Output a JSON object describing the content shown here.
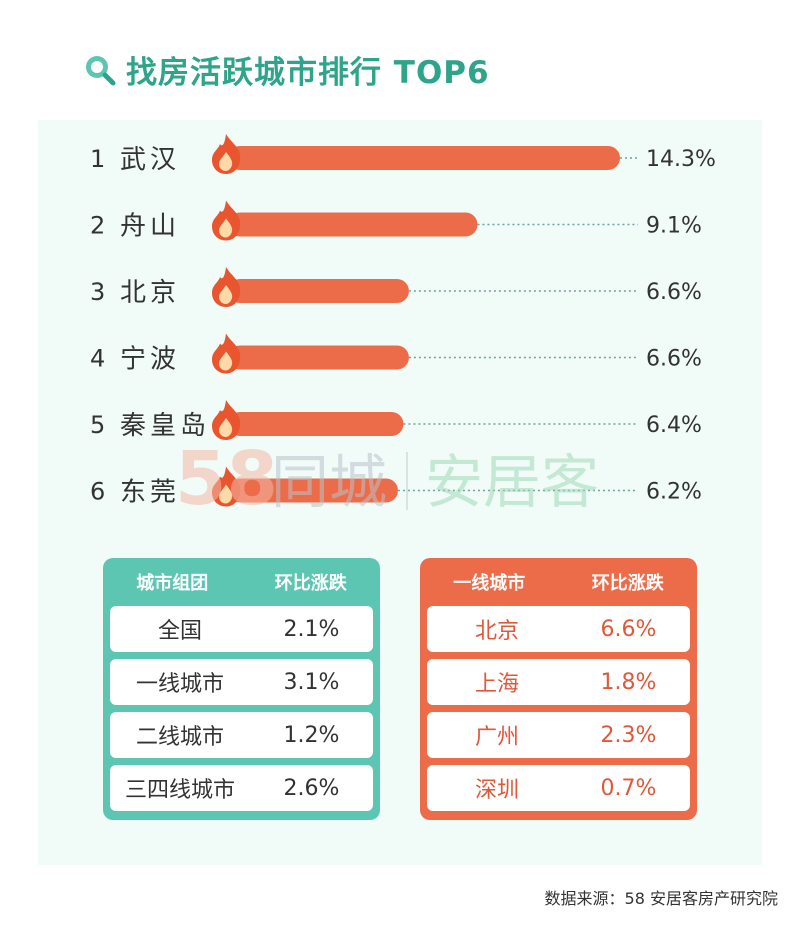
{
  "title": "找房活跃城市排行 TOP6",
  "chart_data": {
    "type": "bar",
    "orientation": "horizontal",
    "ranks": [
      "1",
      "2",
      "3",
      "4",
      "5",
      "6"
    ],
    "categories": [
      "武汉",
      "舟山",
      "北京",
      "宁波",
      "秦皇岛",
      "东莞"
    ],
    "values": [
      14.3,
      9.1,
      6.6,
      6.6,
      6.4,
      6.2
    ],
    "value_labels": [
      "14.3%",
      "9.1%",
      "6.6%",
      "6.6%",
      "6.4%",
      "6.2%"
    ]
  },
  "watermark": {
    "number": "58",
    "brand1": "同城",
    "brand2": "安居客"
  },
  "table_groups": {
    "headers": [
      "城市组团",
      "环比涨跌"
    ],
    "rows": [
      [
        "全国",
        "2.1%"
      ],
      [
        "一线城市",
        "3.1%"
      ],
      [
        "二线城市",
        "1.2%"
      ],
      [
        "三四线城市",
        "2.6%"
      ]
    ]
  },
  "table_tier1": {
    "headers": [
      "一线城市",
      "环比涨跌"
    ],
    "rows": [
      [
        "北京",
        "6.6%"
      ],
      [
        "上海",
        "1.8%"
      ],
      [
        "广州",
        "2.3%"
      ],
      [
        "深圳",
        "0.7%"
      ]
    ]
  },
  "source": "数据来源：58 安居客房产研究院",
  "colors": {
    "bar": "#ec6c4a",
    "flame": "#e9552f",
    "accent": "#2ea48a",
    "table_left": "#5cc6b3",
    "table_right": "#ec6c4a"
  }
}
